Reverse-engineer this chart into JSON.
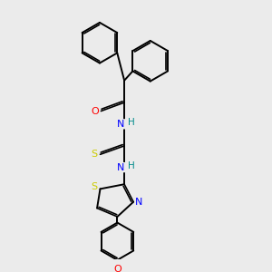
{
  "bg_color": "#ebebeb",
  "bond_color": "#000000",
  "atom_colors": {
    "O": "#ff0000",
    "N": "#0000ff",
    "S": "#cccc00",
    "C": "#000000",
    "H": "#008b8b"
  },
  "lw": 1.4,
  "lw2": 1.2
}
